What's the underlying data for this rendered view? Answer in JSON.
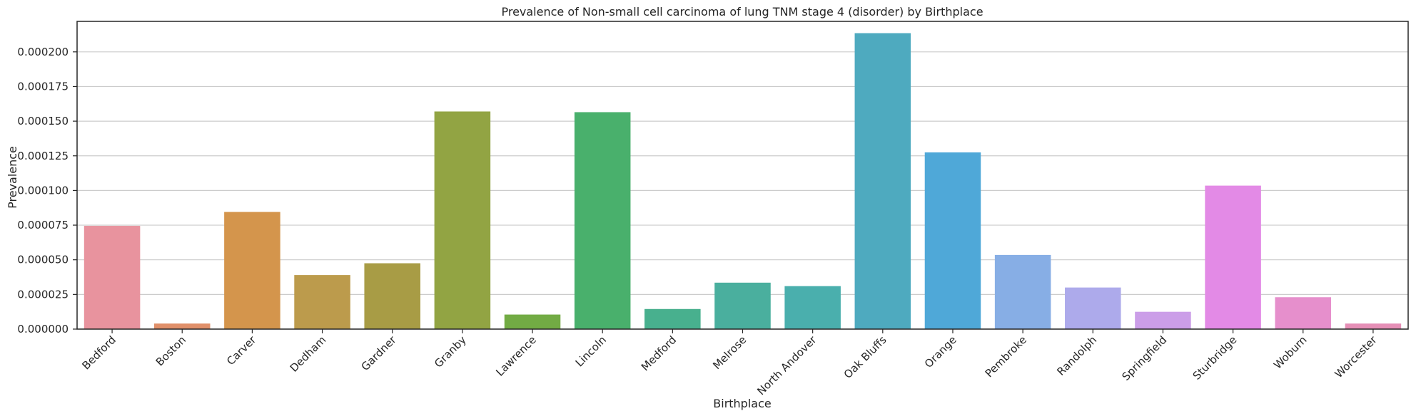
{
  "chart_data": {
    "type": "bar",
    "title": "Prevalence of Non-small cell carcinoma of lung  TNM stage 4 (disorder) by Birthplace",
    "xlabel": "Birthplace",
    "ylabel": "Prevalence",
    "ylim": [
      0,
      0.000222
    ],
    "yticks": [
      "0.000000",
      "0.000025",
      "0.000050",
      "0.000075",
      "0.000100",
      "0.000125",
      "0.000150",
      "0.000175",
      "0.000200"
    ],
    "ytick_values": [
      0,
      2.5e-05,
      5e-05,
      7.5e-05,
      0.0001,
      0.000125,
      0.00015,
      0.000175,
      0.0002
    ],
    "grid": "y",
    "categories": [
      "Bedford",
      "Boston",
      "Carver",
      "Dedham",
      "Gardner",
      "Granby",
      "Lawrence",
      "Lincoln",
      "Medford",
      "Melrose",
      "North Andover",
      "Oak Bluffs",
      "Orange",
      "Pembroke",
      "Randolph",
      "Springfield",
      "Sturbridge",
      "Woburn",
      "Worcester"
    ],
    "values": [
      7.45e-05,
      4e-06,
      8.45e-05,
      3.9e-05,
      4.75e-05,
      0.000157,
      1.05e-05,
      0.0001565,
      1.45e-05,
      3.35e-05,
      3.1e-05,
      0.0002135,
      0.0001275,
      5.35e-05,
      3e-05,
      1.25e-05,
      0.0001035,
      2.3e-05,
      4e-06
    ],
    "colors": [
      "#e8939e",
      "#e0906a",
      "#d4954c",
      "#bc9b4c",
      "#a89c45",
      "#92a443",
      "#72ab44",
      "#49b06c",
      "#48b08e",
      "#4aaf9e",
      "#4aafad",
      "#4eaabf",
      "#4fa8d8",
      "#87aee5",
      "#adaaeb",
      "#cb9ee8",
      "#e38ae6",
      "#e68fcc",
      "#e58fb6"
    ]
  }
}
